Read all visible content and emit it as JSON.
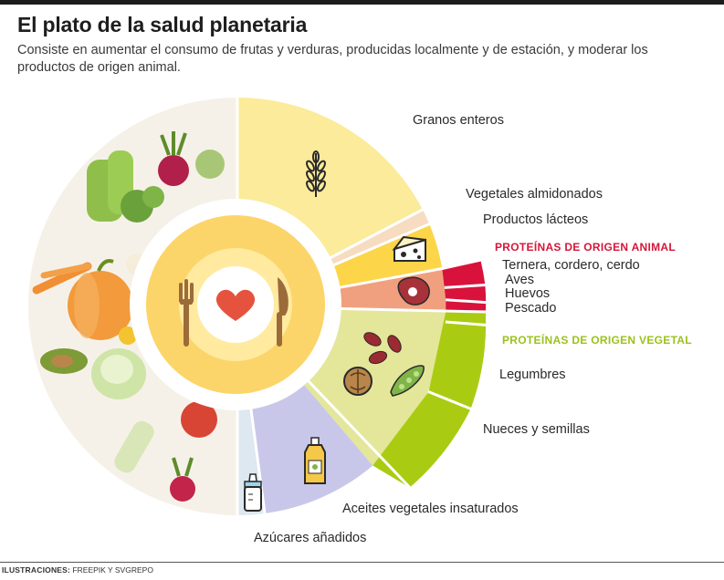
{
  "header": {
    "title": "El plato de la salud planetaria",
    "subtitle": "Consiste en aumentar el consumo de frutas y verduras, producidas localmente y de estación, y moderar los productos de origen animal."
  },
  "labels": {
    "granos": "Granos enteros",
    "vegetales_almidonados": "Vegetales almidonados",
    "lacteos": "Productos lácteos",
    "animal_header": "PROTEÍNAS DE ORIGEN ANIMAL",
    "ternera": "Ternera, cordero, cerdo",
    "aves": "Aves",
    "huevos": "Huevos",
    "pescado": "Pescado",
    "vegetal_header": "PROTEÍNAS DE ORIGEN VEGETAL",
    "legumbres": "Legumbres",
    "nueces": "Nueces y semillas",
    "aceites": "Aceites vegetales insaturados",
    "azucares": "Azúcares añadidos"
  },
  "credits": {
    "label": "ILUSTRACIONES:",
    "value": "FREEPIK Y SVGREPO"
  },
  "colors": {
    "granos": "#fbeb9a",
    "vegetales_almidonados": "#f7dcc1",
    "lacteos": "#fcd549",
    "carne": "#f0a07e",
    "animal_protein": "#d8123a",
    "legumbres": "#e4e69a",
    "vegetal_protein": "#a9cc12",
    "aceites": "#c9c7e9",
    "azucares": "#dde8f0",
    "center": "#fcd56a",
    "ring": "#ffffff",
    "heart": "#e5533f"
  },
  "icons": [
    "wheat-icon",
    "cheese-icon",
    "meat-icon",
    "beans-icon",
    "walnut-icon",
    "peapod-icon",
    "oil-bottle-icon",
    "baby-bottle-icon",
    "fork-icon",
    "knife-icon",
    "heart-icon"
  ]
}
